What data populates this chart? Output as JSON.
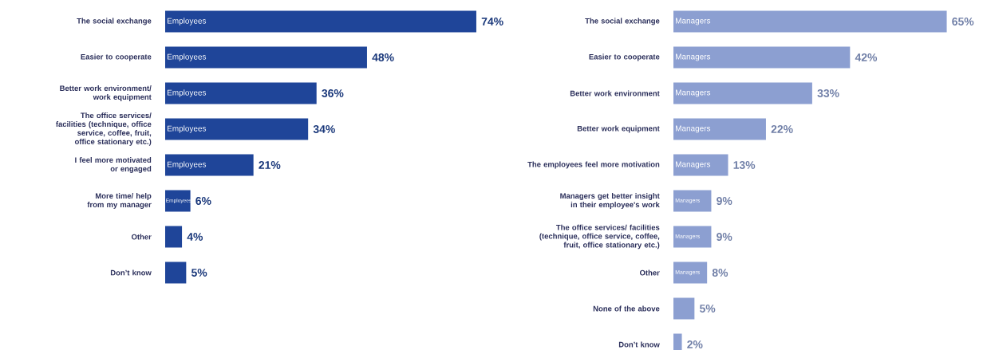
{
  "chart_data": [
    {
      "type": "bar",
      "orientation": "horizontal",
      "categories": [
        "The social exchange",
        "Easier to cooperate",
        "Better work environment/ work equipment",
        "The office services/ facilities (technique, office service, coffee, fruit, office stationary etc.)",
        "I feel more motivated or engaged",
        "More time/ help from my manager",
        "Other",
        "Don’t know"
      ],
      "series": [
        {
          "name": "Employees",
          "color": "#1f4599",
          "values": [
            74,
            48,
            36,
            34,
            21,
            6,
            4,
            5
          ],
          "value_labels": [
            "74%",
            "48%",
            "36%",
            "34%",
            "21%",
            "6%",
            "4%",
            "5%"
          ]
        }
      ]
    },
    {
      "type": "bar",
      "orientation": "horizontal",
      "categories": [
        "The social exchange",
        "Easier to cooperate",
        "Better work environment",
        "Better work equipment",
        "The employees feel more motivation",
        "Managers get better insight in their employee's work",
        "The office services/ facilities (technique, office service, coffee, fruit, office stationary etc.)",
        "Other",
        "None of the above",
        "Don’t know"
      ],
      "series": [
        {
          "name": "Managers",
          "color": "#8c9fd1",
          "values": [
            65,
            42,
            33,
            22,
            13,
            9,
            9,
            8,
            5,
            2
          ],
          "value_labels": [
            "65%",
            "42%",
            "33%",
            "22%",
            "13%",
            "9%",
            "9%",
            "8%",
            "5%",
            "2%"
          ]
        }
      ]
    }
  ]
}
